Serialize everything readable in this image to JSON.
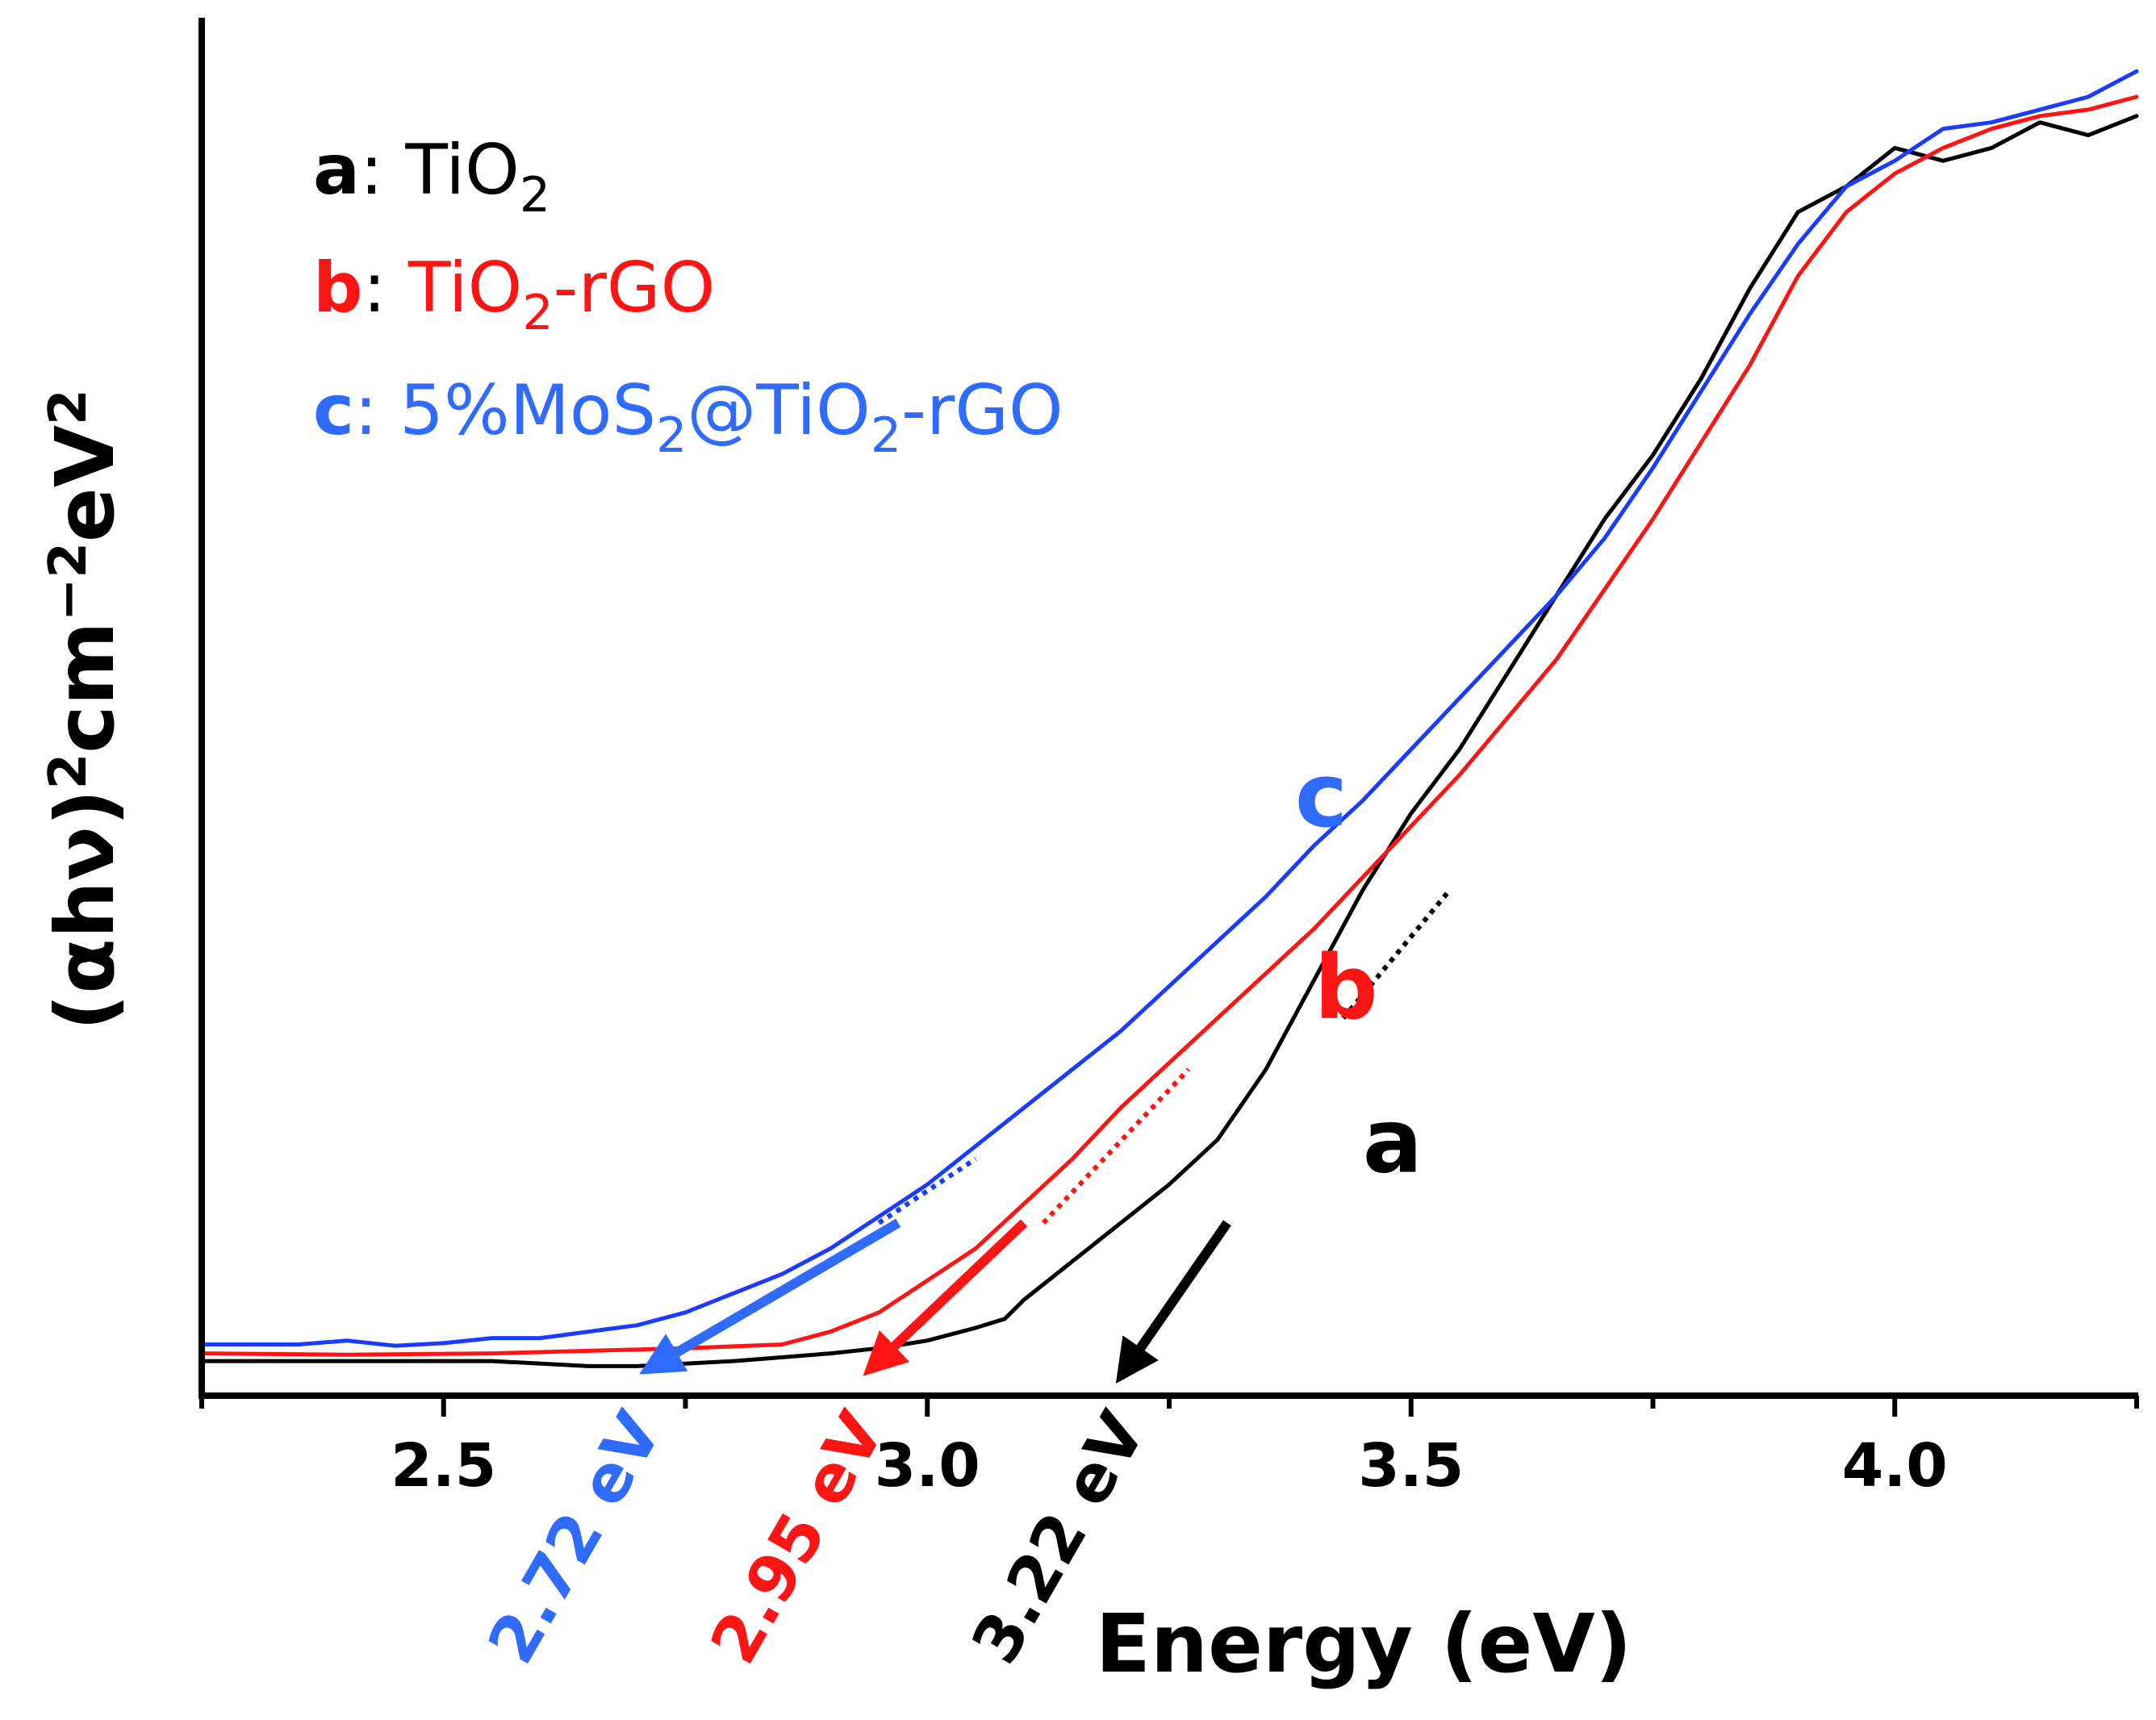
{
  "colors": {
    "a": "#000000",
    "b": "#ff1414",
    "c": "#1a3cff",
    "c_arrow": "#2f6bff"
  },
  "chart_data": {
    "type": "line",
    "title": "",
    "xlabel": "Energy (eV)",
    "ylabel_main": "(αhν)",
    "ylabel_exp1": "2",
    "ylabel_unit": "cm",
    "ylabel_exp2": "−2",
    "ylabel_unit2": "eV",
    "ylabel_exp3": "2",
    "xlim": [
      2.25,
      4.25
    ],
    "ylim": [
      -0.01,
      1.0
    ],
    "x_ticks": [
      2.5,
      3.0,
      3.5,
      4.0
    ],
    "x_tick_labels": [
      "2.5",
      "3.0",
      "3.5",
      "4.0"
    ],
    "series": [
      {
        "key": "a",
        "name": "TiO2",
        "color": "#000000",
        "x": [
          2.25,
          2.4,
          2.55,
          2.65,
          2.7,
          2.8,
          2.9,
          2.95,
          3.0,
          3.05,
          3.08,
          3.1,
          3.15,
          3.2,
          3.25,
          3.3,
          3.35,
          3.4,
          3.45,
          3.5,
          3.55,
          3.6,
          3.65,
          3.7,
          3.75,
          3.8,
          3.85,
          3.9,
          3.95,
          4.0,
          4.05,
          4.1,
          4.15,
          4.2,
          4.25
        ],
        "y": [
          0.012,
          0.012,
          0.012,
          0.008,
          0.008,
          0.012,
          0.018,
          0.022,
          0.028,
          0.038,
          0.045,
          0.06,
          0.09,
          0.12,
          0.15,
          0.185,
          0.24,
          0.31,
          0.38,
          0.44,
          0.49,
          0.55,
          0.61,
          0.67,
          0.72,
          0.78,
          0.85,
          0.91,
          0.93,
          0.96,
          0.95,
          0.96,
          0.98,
          0.97,
          0.985
        ]
      },
      {
        "key": "b",
        "name": "TiO2-rGO",
        "color": "#ff1414",
        "x": [
          2.25,
          2.4,
          2.55,
          2.65,
          2.75,
          2.85,
          2.9,
          2.95,
          3.0,
          3.05,
          3.1,
          3.15,
          3.2,
          3.25,
          3.3,
          3.35,
          3.4,
          3.45,
          3.5,
          3.55,
          3.6,
          3.65,
          3.7,
          3.75,
          3.8,
          3.85,
          3.9,
          3.95,
          4.0,
          4.05,
          4.1,
          4.15,
          4.2,
          4.25
        ],
        "y": [
          0.018,
          0.017,
          0.018,
          0.02,
          0.022,
          0.025,
          0.035,
          0.05,
          0.075,
          0.1,
          0.135,
          0.17,
          0.21,
          0.245,
          0.28,
          0.315,
          0.35,
          0.39,
          0.43,
          0.47,
          0.515,
          0.56,
          0.615,
          0.67,
          0.73,
          0.79,
          0.86,
          0.91,
          0.94,
          0.96,
          0.975,
          0.985,
          0.99,
          1.0
        ]
      },
      {
        "key": "c",
        "name": "5%MoS2@TiO2-rGO",
        "color": "#1a3cff",
        "x": [
          2.25,
          2.35,
          2.4,
          2.45,
          2.5,
          2.55,
          2.6,
          2.65,
          2.7,
          2.75,
          2.8,
          2.85,
          2.9,
          2.95,
          3.0,
          3.05,
          3.1,
          3.15,
          3.2,
          3.25,
          3.3,
          3.35,
          3.4,
          3.45,
          3.5,
          3.55,
          3.6,
          3.65,
          3.7,
          3.75,
          3.8,
          3.85,
          3.9,
          3.95,
          4.0,
          4.05,
          4.1,
          4.15,
          4.2,
          4.25
        ],
        "y": [
          0.025,
          0.025,
          0.028,
          0.024,
          0.026,
          0.03,
          0.03,
          0.035,
          0.04,
          0.05,
          0.065,
          0.08,
          0.1,
          0.125,
          0.15,
          0.18,
          0.21,
          0.24,
          0.27,
          0.305,
          0.34,
          0.375,
          0.415,
          0.45,
          0.49,
          0.53,
          0.57,
          0.61,
          0.655,
          0.71,
          0.77,
          0.83,
          0.885,
          0.93,
          0.95,
          0.975,
          0.98,
          0.99,
          1.0,
          1.02
        ]
      }
    ],
    "tangents": [
      {
        "key": "a",
        "from": [
          3.43,
          0.28
        ],
        "to": [
          3.54,
          0.38
        ]
      },
      {
        "key": "b",
        "from": [
          3.12,
          0.12
        ],
        "to": [
          3.27,
          0.24
        ]
      },
      {
        "key": "c",
        "from": [
          2.95,
          0.12
        ],
        "to": [
          3.05,
          0.17
        ]
      }
    ],
    "arrows": [
      {
        "key": "a",
        "from": [
          3.31,
          0.12
        ],
        "to": [
          3.2,
          0.0
        ]
      },
      {
        "key": "b",
        "from": [
          3.1,
          0.12
        ],
        "to": [
          2.94,
          0.005
        ]
      },
      {
        "key": "c",
        "from": [
          2.97,
          0.12
        ],
        "to": [
          2.71,
          0.005
        ]
      }
    ],
    "band_gap_labels": [
      {
        "key": "c",
        "text": "2.72 eV",
        "x": 2.72
      },
      {
        "key": "b",
        "text": "2.95 eV",
        "x": 2.95
      },
      {
        "key": "a",
        "text": "3.22 eV",
        "x": 3.22
      }
    ],
    "curve_labels": [
      {
        "key": "c",
        "text": "c",
        "x": 3.38,
        "y": 0.43
      },
      {
        "key": "b",
        "text": "b",
        "x": 3.4,
        "y": 0.28
      },
      {
        "key": "a",
        "text": "a",
        "x": 3.45,
        "y": 0.16
      }
    ],
    "legend": {
      "position": "top-left",
      "items": [
        {
          "key": "a",
          "key_text": "a",
          "sep": ": ",
          "pre": "TiO",
          "sub": "2",
          "post": ""
        },
        {
          "key": "b",
          "key_text": "b",
          "sep": ": ",
          "pre": "TiO",
          "sub": "2",
          "post": "-rGO"
        },
        {
          "key": "c",
          "key_text": "c",
          "sep": ": ",
          "pre": "5%MoS",
          "sub": "2",
          "mid": "@TiO",
          "sub2": "2",
          "post": "-rGO"
        }
      ]
    }
  }
}
